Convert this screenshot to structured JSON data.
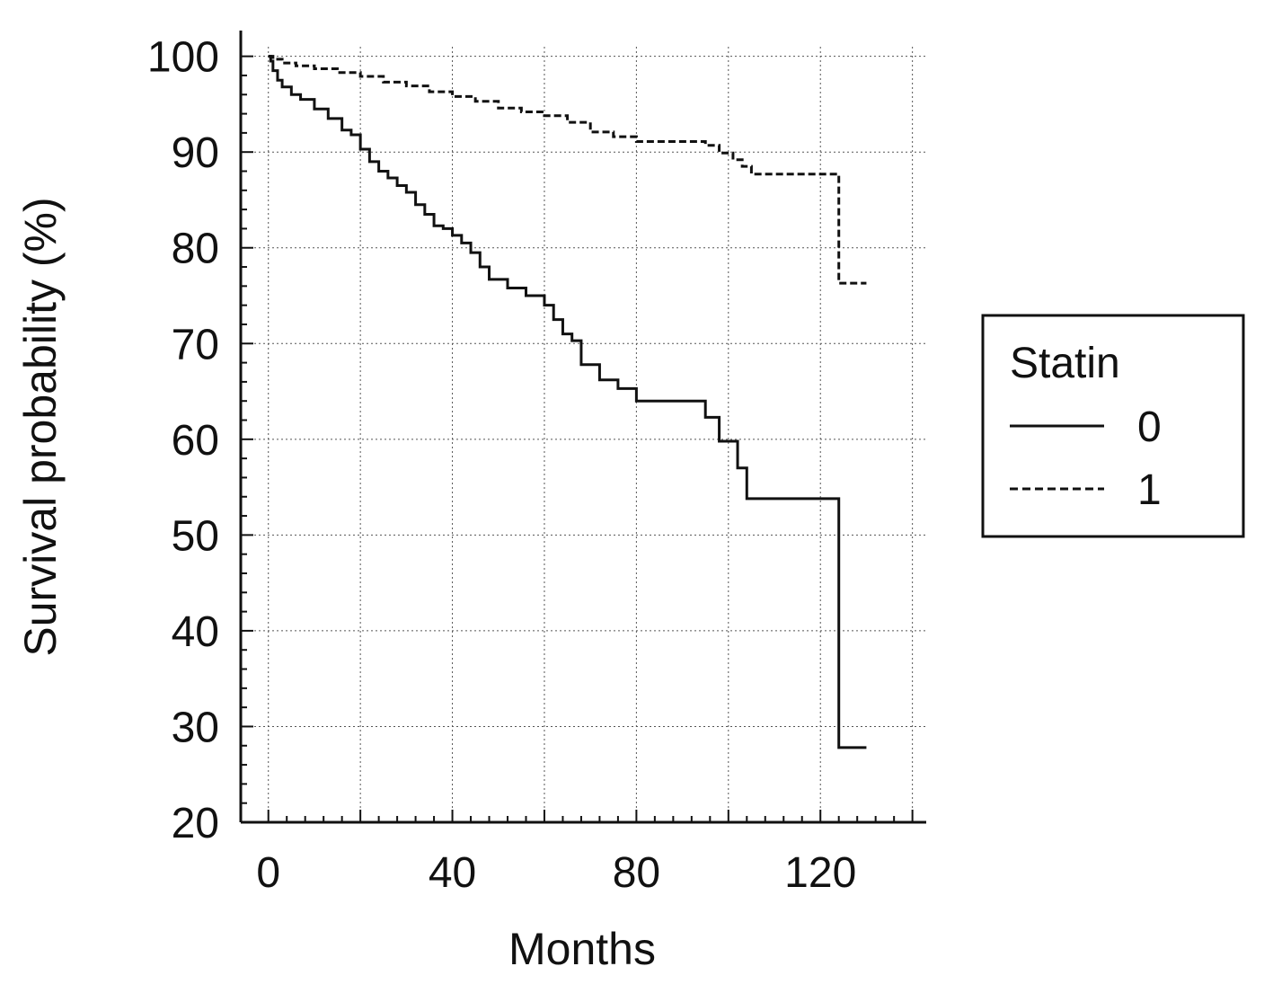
{
  "chart_data": {
    "type": "line",
    "title": "",
    "xlabel": "Months",
    "ylabel": "Survival probability (%)",
    "xlim": [
      -6,
      143
    ],
    "ylim": [
      20,
      101
    ],
    "x_ticks": [
      0,
      40,
      80,
      120
    ],
    "y_ticks": [
      20,
      30,
      40,
      50,
      60,
      70,
      80,
      90,
      100
    ],
    "grid": true,
    "step": true,
    "legend": {
      "title": "Statin",
      "position": "right"
    },
    "series": [
      {
        "name": "0",
        "line_style": "solid",
        "x": [
          0,
          0.5,
          1,
          2,
          3,
          5,
          7,
          10,
          13,
          16,
          18,
          20,
          22,
          24,
          26,
          28,
          30,
          32,
          34,
          36,
          38,
          40,
          42,
          44,
          46,
          48,
          52,
          56,
          60,
          62,
          64,
          66,
          68,
          72,
          76,
          80,
          95,
          98,
          102,
          104,
          124,
          130
        ],
        "y": [
          100,
          99.5,
          98.5,
          97.5,
          96.8,
          96.0,
          95.5,
          94.5,
          93.5,
          92.3,
          91.8,
          90.3,
          89.0,
          88.0,
          87.3,
          86.5,
          85.8,
          84.5,
          83.5,
          82.3,
          82.0,
          81.3,
          80.5,
          79.5,
          78.0,
          76.7,
          75.8,
          75.0,
          74.0,
          72.5,
          71.0,
          70.3,
          67.8,
          66.2,
          65.3,
          64.0,
          62.3,
          59.8,
          57.0,
          53.8,
          27.8,
          27.8
        ]
      },
      {
        "name": "1",
        "line_style": "dashed",
        "x": [
          0,
          1,
          3,
          6,
          10,
          15,
          20,
          25,
          30,
          35,
          40,
          45,
          50,
          55,
          60,
          65,
          70,
          75,
          80,
          95,
          98,
          101,
          103,
          105,
          124,
          130
        ],
        "y": [
          100,
          99.7,
          99.3,
          99.0,
          98.7,
          98.3,
          97.9,
          97.3,
          96.9,
          96.3,
          95.8,
          95.3,
          94.6,
          94.2,
          93.8,
          93.1,
          92.1,
          91.6,
          91.1,
          90.7,
          89.9,
          89.2,
          88.5,
          87.7,
          76.3,
          76.3
        ]
      }
    ]
  }
}
